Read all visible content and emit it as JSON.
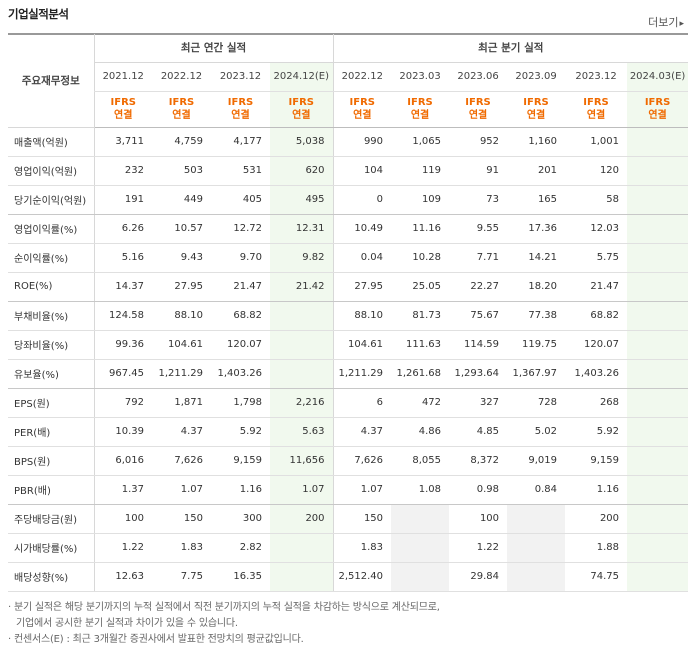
{
  "header": {
    "title": "기업실적분석",
    "more_label": "더보기",
    "more_arrow": "▸"
  },
  "table": {
    "corner_label": "주요재무정보",
    "group_annual": "최근 연간 실적",
    "group_quarter": "최근 분기 실적",
    "periods": [
      "2021.12",
      "2022.12",
      "2023.12",
      "2024.12(E)",
      "2022.12",
      "2023.03",
      "2023.06",
      "2023.09",
      "2023.12",
      "2024.03(E)"
    ],
    "ifrs_top": "IFRS",
    "ifrs_bottom": "연결",
    "rows": [
      {
        "label": "매출액(억원)",
        "v": [
          "3,711",
          "4,759",
          "4,177",
          "5,038",
          "990",
          "1,065",
          "952",
          "1,160",
          "1,001",
          ""
        ]
      },
      {
        "label": "영업이익(억원)",
        "v": [
          "232",
          "503",
          "531",
          "620",
          "104",
          "119",
          "91",
          "201",
          "120",
          ""
        ]
      },
      {
        "label": "당기순이익(억원)",
        "v": [
          "191",
          "449",
          "405",
          "495",
          "0",
          "109",
          "73",
          "165",
          "58",
          ""
        ]
      },
      {
        "label": "영업이익률(%)",
        "v": [
          "6.26",
          "10.57",
          "12.72",
          "12.31",
          "10.49",
          "11.16",
          "9.55",
          "17.36",
          "12.03",
          ""
        ]
      },
      {
        "label": "순이익률(%)",
        "v": [
          "5.16",
          "9.43",
          "9.70",
          "9.82",
          "0.04",
          "10.28",
          "7.71",
          "14.21",
          "5.75",
          ""
        ]
      },
      {
        "label": "ROE(%)",
        "v": [
          "14.37",
          "27.95",
          "21.47",
          "21.42",
          "27.95",
          "25.05",
          "22.27",
          "18.20",
          "21.47",
          ""
        ]
      },
      {
        "label": "부채비율(%)",
        "v": [
          "124.58",
          "88.10",
          "68.82",
          "",
          "88.10",
          "81.73",
          "75.67",
          "77.38",
          "68.82",
          ""
        ]
      },
      {
        "label": "당좌비율(%)",
        "v": [
          "99.36",
          "104.61",
          "120.07",
          "",
          "104.61",
          "111.63",
          "114.59",
          "119.75",
          "120.07",
          ""
        ]
      },
      {
        "label": "유보율(%)",
        "v": [
          "967.45",
          "1,211.29",
          "1,403.26",
          "",
          "1,211.29",
          "1,261.68",
          "1,293.64",
          "1,367.97",
          "1,403.26",
          ""
        ]
      },
      {
        "label": "EPS(원)",
        "v": [
          "792",
          "1,871",
          "1,798",
          "2,216",
          "6",
          "472",
          "327",
          "728",
          "268",
          ""
        ]
      },
      {
        "label": "PER(배)",
        "v": [
          "10.39",
          "4.37",
          "5.92",
          "5.63",
          "4.37",
          "4.86",
          "4.85",
          "5.02",
          "5.92",
          ""
        ]
      },
      {
        "label": "BPS(원)",
        "v": [
          "6,016",
          "7,626",
          "9,159",
          "11,656",
          "7,626",
          "8,055",
          "8,372",
          "9,019",
          "9,159",
          ""
        ]
      },
      {
        "label": "PBR(배)",
        "v": [
          "1.37",
          "1.07",
          "1.16",
          "1.07",
          "1.07",
          "1.08",
          "0.98",
          "0.84",
          "1.16",
          ""
        ]
      },
      {
        "label": "주당배당금(원)",
        "v": [
          "100",
          "150",
          "300",
          "200",
          "150",
          "",
          "100",
          "",
          "200",
          ""
        ]
      },
      {
        "label": "시가배당률(%)",
        "v": [
          "1.22",
          "1.83",
          "2.82",
          "",
          "1.83",
          "",
          "1.22",
          "",
          "1.88",
          ""
        ]
      },
      {
        "label": "배당성향(%)",
        "v": [
          "12.63",
          "7.75",
          "16.35",
          "",
          "2,512.40",
          "",
          "29.84",
          "",
          "74.75",
          ""
        ]
      }
    ]
  },
  "notes": {
    "line1": "· 분기 실적은 해당 분기까지의 누적 실적에서 직전 분기까지의 누적 실적을 차감하는 방식으로 계산되므로,",
    "line2": "기업에서 공시한 분기 실적과 차이가 있을 수 있습니다.",
    "line3": "· 컨센서스(E) : 최근 3개월간 증권사에서 발표한 전망치의 평균값입니다."
  },
  "colors": {
    "ifrs": "#f06a00",
    "estimate_bg": "#f1f9ee",
    "empty_bg": "#f2f2f2"
  }
}
